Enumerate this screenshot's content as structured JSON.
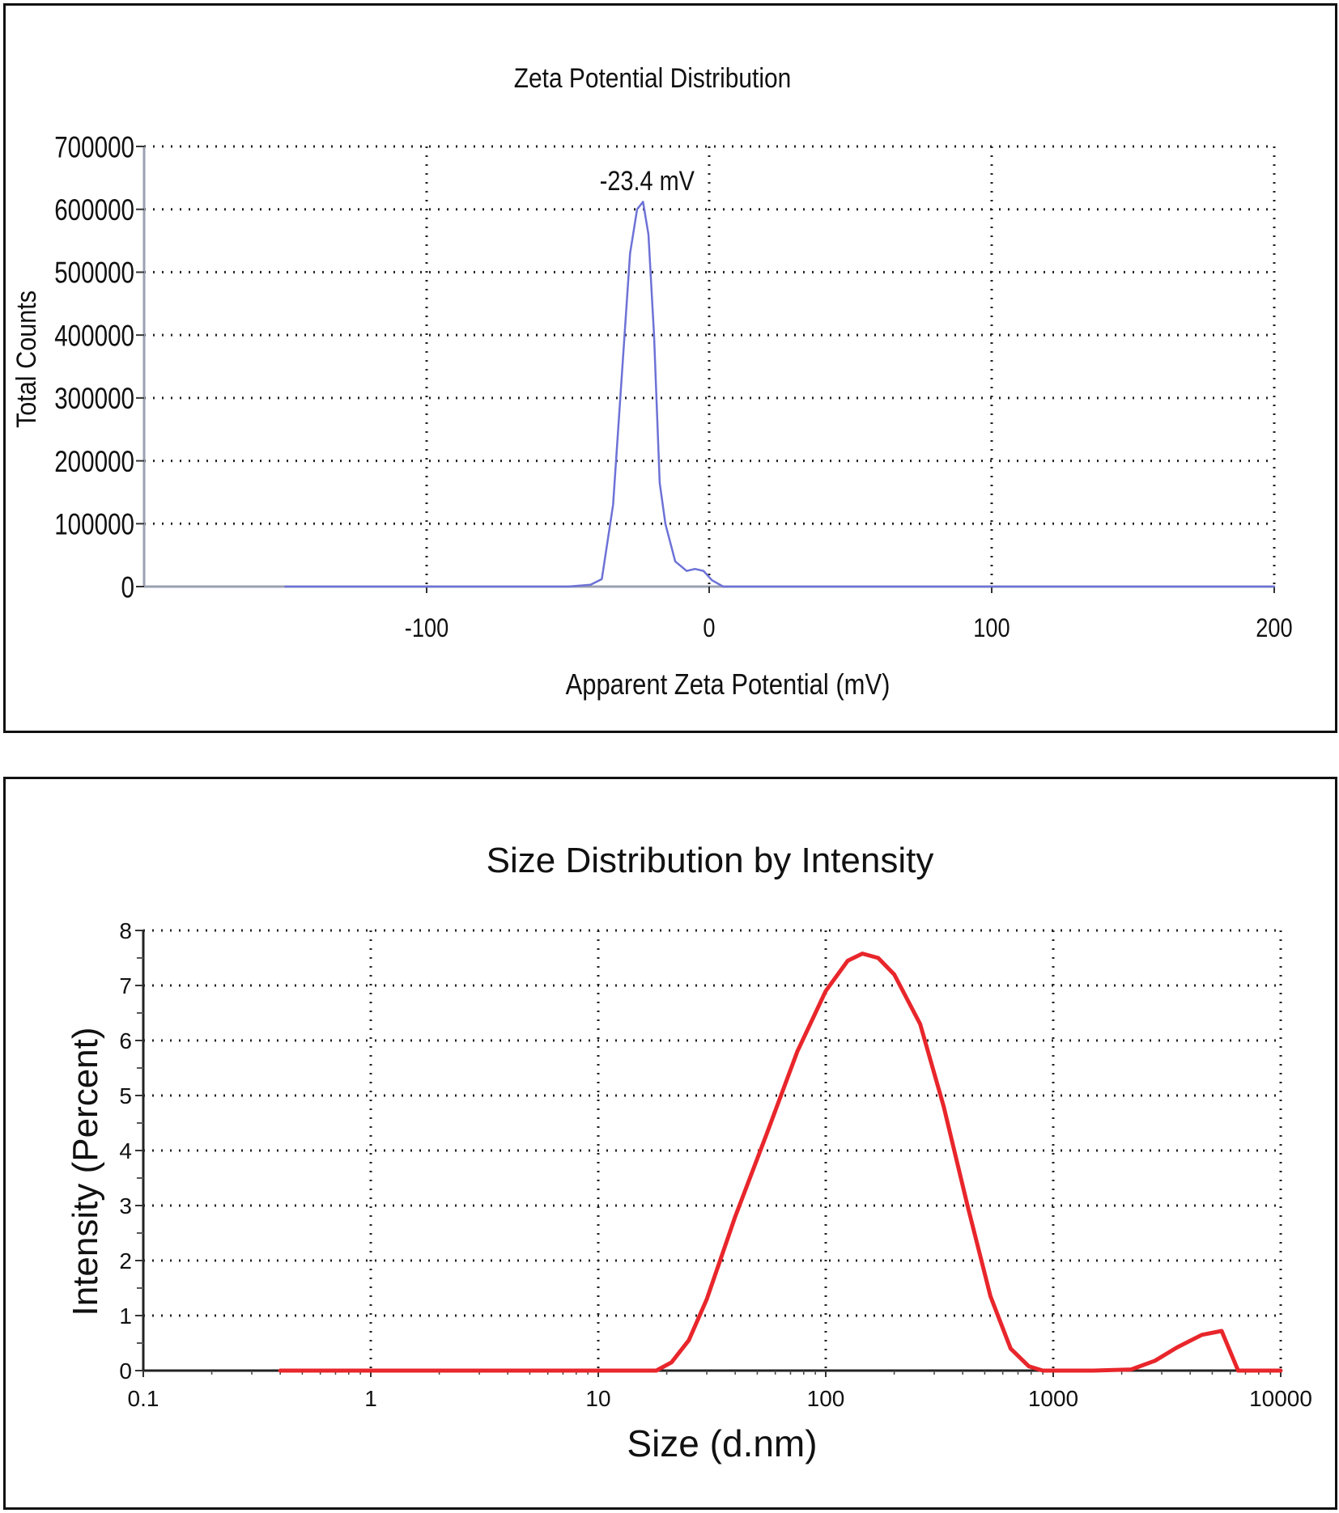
{
  "chart_data": [
    {
      "type": "line",
      "title": "Zeta Potential Distribution",
      "xlabel": "Apparent Zeta Potential (mV)",
      "ylabel": "Total Counts",
      "xlim": [
        -200,
        200
      ],
      "ylim": [
        0,
        700000
      ],
      "x_ticks": [
        -100,
        0,
        100,
        200
      ],
      "x_tick_labels": [
        "-100",
        "0",
        "100",
        "200"
      ],
      "y_ticks": [
        0,
        100000,
        200000,
        300000,
        400000,
        500000,
        600000,
        700000
      ],
      "y_tick_labels": [
        "0",
        "100000",
        "200000",
        "300000",
        "400000",
        "500000",
        "600000",
        "700000"
      ],
      "grid": true,
      "line_color": "#6d72d6",
      "annotation": {
        "text": "-23.4 mV",
        "x": -23.4,
        "y": 610000
      },
      "series": [
        {
          "x": [
            -150,
            -100,
            -50,
            -42,
            -38,
            -34,
            -31,
            -28,
            -25.5,
            -23.4,
            -21.5,
            -19.5,
            -17.5,
            -15.5,
            -12,
            -8,
            -5,
            -2,
            1,
            5,
            50,
            100,
            150,
            200
          ],
          "y": [
            0,
            0,
            0,
            3000,
            12000,
            130000,
            330000,
            530000,
            600000,
            612000,
            560000,
            400000,
            165000,
            100000,
            40000,
            25000,
            28000,
            25000,
            10000,
            0,
            0,
            0,
            0,
            0
          ]
        }
      ]
    },
    {
      "type": "line",
      "title": "Size Distribution by Intensity",
      "xlabel": "Size (d.nm)",
      "ylabel": "Intensity (Percent)",
      "xscale": "log",
      "xlim": [
        0.1,
        10000
      ],
      "ylim": [
        0,
        8
      ],
      "x_ticks": [
        0.1,
        1,
        10,
        100,
        1000,
        10000
      ],
      "x_tick_labels": [
        "0.1",
        "1",
        "10",
        "100",
        "1000",
        "10000"
      ],
      "y_ticks": [
        0,
        1,
        2,
        3,
        4,
        5,
        6,
        7,
        8
      ],
      "y_tick_labels": [
        "0",
        "1",
        "2",
        "3",
        "4",
        "5",
        "6",
        "7",
        "8"
      ],
      "grid": true,
      "line_color": "#e8262b",
      "series": [
        {
          "x": [
            0.4,
            1,
            10,
            18,
            21,
            25,
            30,
            40,
            55,
            75,
            100,
            125,
            145,
            170,
            200,
            260,
            330,
            420,
            530,
            650,
            780,
            900,
            1500,
            2200,
            2800,
            3500,
            4500,
            5500,
            6500,
            10000
          ],
          "y": [
            0,
            0,
            0,
            0,
            0.15,
            0.55,
            1.3,
            2.8,
            4.3,
            5.8,
            6.9,
            7.45,
            7.58,
            7.5,
            7.2,
            6.3,
            4.8,
            3.0,
            1.35,
            0.4,
            0.08,
            0,
            0,
            0.02,
            0.18,
            0.42,
            0.65,
            0.72,
            0,
            0
          ]
        }
      ]
    }
  ]
}
